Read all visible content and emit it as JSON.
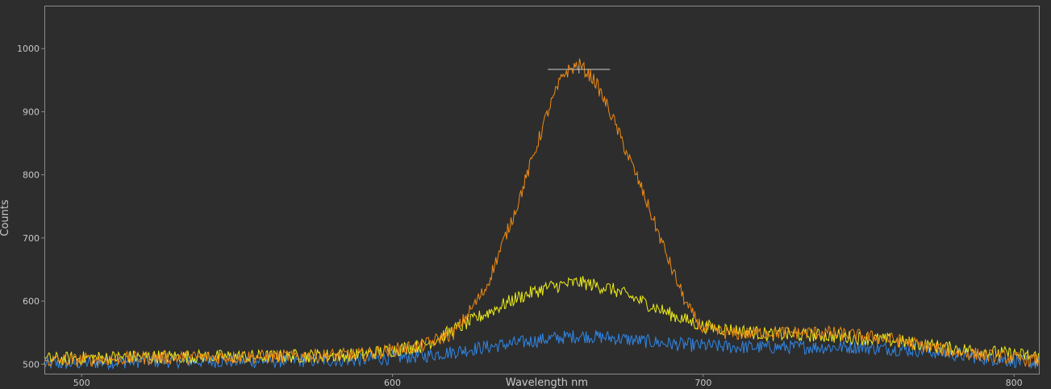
{
  "colors": {
    "background": "#2d2d2d",
    "frame": "#8a8a8a",
    "tick_text": "#c8c8c8",
    "axis_title": "#c8c8c8"
  },
  "chart_data": {
    "type": "line",
    "xlabel": "Wavelength nm",
    "ylabel": "Counts",
    "xlim": [
      488,
      808
    ],
    "ylim": [
      485,
      1068
    ],
    "x_ticks": [
      500,
      600,
      700,
      800
    ],
    "y_ticks": [
      500,
      600,
      700,
      800,
      900,
      1000
    ],
    "grid": false,
    "legend": "none",
    "noise_amplitude": 11,
    "series": [
      {
        "color": "#f08a12",
        "peak_marker": {
          "x": 660,
          "y": 967,
          "half_width": 10
        },
        "x": [
          488,
          520,
          560,
          590,
          610,
          620,
          630,
          640,
          650,
          655,
          660,
          665,
          670,
          680,
          690,
          695,
          700,
          710,
          720,
          740,
          760,
          780,
          808
        ],
        "y": [
          505,
          510,
          512,
          515,
          530,
          550,
          620,
          750,
          900,
          960,
          975,
          950,
          900,
          780,
          650,
          590,
          555,
          548,
          550,
          550,
          540,
          520,
          505
        ]
      },
      {
        "color": "#f0ee18",
        "x": [
          488,
          520,
          560,
          590,
          610,
          620,
          630,
          640,
          650,
          660,
          670,
          680,
          690,
          700,
          720,
          740,
          760,
          780,
          808
        ],
        "y": [
          508,
          512,
          512,
          515,
          530,
          555,
          580,
          605,
          622,
          630,
          620,
          600,
          578,
          560,
          548,
          545,
          538,
          525,
          512
        ]
      },
      {
        "color": "#2f86e6",
        "x": [
          488,
          520,
          560,
          590,
          610,
          630,
          650,
          660,
          670,
          690,
          710,
          730,
          750,
          770,
          790,
          808
        ],
        "y": [
          500,
          505,
          505,
          507,
          513,
          527,
          540,
          545,
          542,
          532,
          527,
          527,
          527,
          522,
          510,
          502
        ]
      }
    ]
  }
}
